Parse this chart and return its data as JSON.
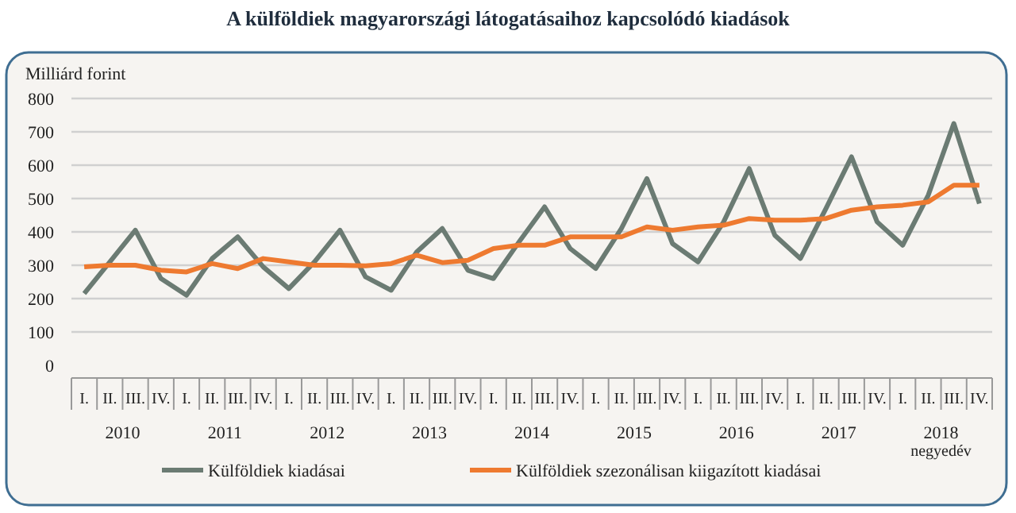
{
  "chart_data": {
    "type": "line",
    "title": "A külföldiek magyarországi látogatásaihoz kapcsolódó kiadások",
    "ylabel": "Milliárd forint",
    "categories": [
      "I.",
      "II.",
      "III.",
      "IV.",
      "I.",
      "II.",
      "III.",
      "IV.",
      "I.",
      "II.",
      "III.",
      "IV.",
      "I.",
      "II.",
      "III.",
      "IV.",
      "I.",
      "II.",
      "III.",
      "IV.",
      "I.",
      "II.",
      "III.",
      "IV.",
      "I.",
      "II.",
      "III.",
      "IV.",
      "I.",
      "II.",
      "III.",
      "IV.",
      "I.",
      "II.",
      "III.",
      "IV."
    ],
    "annotations": [
      "2010",
      "2011",
      "2012",
      "2013",
      "2014",
      "2015",
      "2016",
      "2017",
      "2018",
      "negyedév"
    ],
    "series": [
      {
        "name": "Külföldiek kiadásai",
        "color": "#6b7b73",
        "values": [
          215,
          310,
          405,
          260,
          210,
          320,
          385,
          295,
          230,
          310,
          405,
          265,
          225,
          340,
          410,
          285,
          260,
          370,
          475,
          350,
          290,
          410,
          560,
          365,
          310,
          430,
          590,
          390,
          320,
          470,
          625,
          430,
          360,
          510,
          725,
          485
        ]
      },
      {
        "name": "Külföldiek szezonálisan kiigazított kiadásai",
        "color": "#ee7a30",
        "values": [
          295,
          300,
          300,
          285,
          280,
          305,
          290,
          320,
          310,
          300,
          300,
          298,
          305,
          330,
          308,
          315,
          350,
          360,
          360,
          385,
          385,
          385,
          415,
          405,
          415,
          420,
          440,
          435,
          435,
          440,
          465,
          475,
          480,
          490,
          540,
          540
        ]
      }
    ],
    "ylim": [
      0,
      800
    ],
    "yticks": [
      0,
      100,
      200,
      300,
      400,
      500,
      600,
      700,
      800
    ],
    "grid": "y",
    "legend": "bottom",
    "marker": "none",
    "line_style": "solid"
  }
}
